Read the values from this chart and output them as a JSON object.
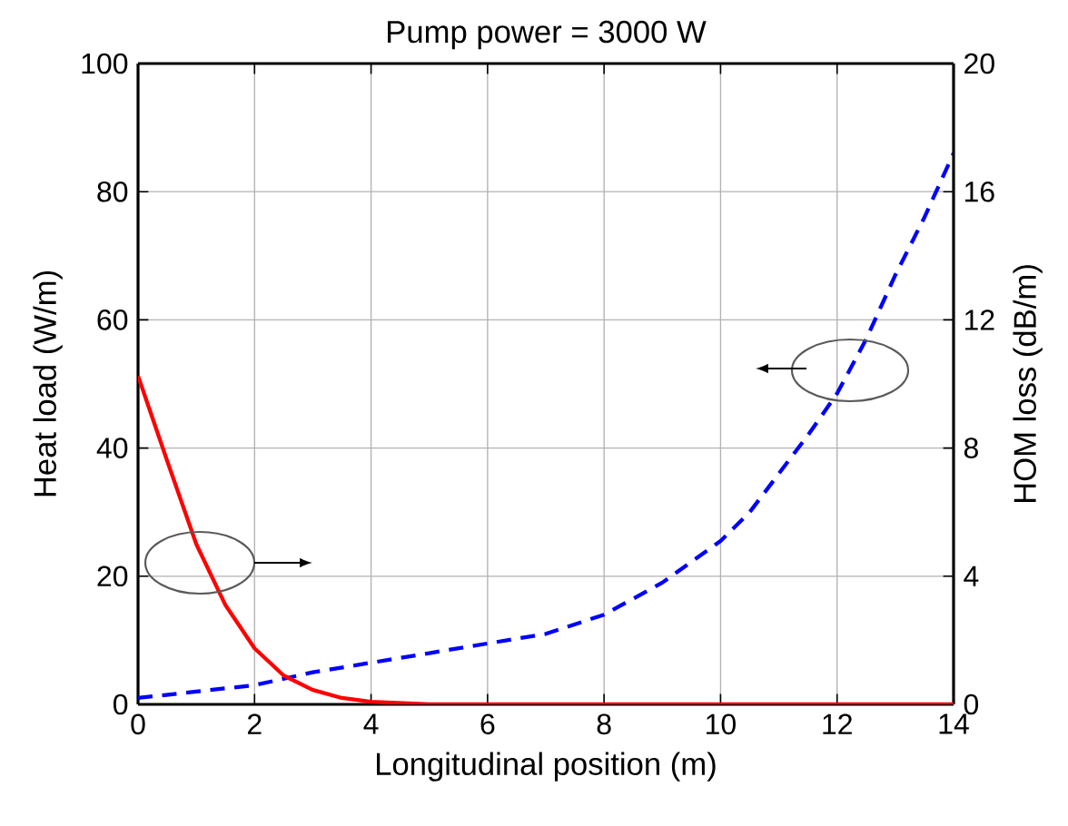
{
  "chart_data": {
    "type": "line",
    "title": "Pump power = 3000 W",
    "xlabel": "Longitudinal position (m)",
    "ylabel": "Heat load (W/m)",
    "y2label": "HOM loss (dB/m)",
    "xlim": [
      0,
      14
    ],
    "xticks": [
      0,
      2,
      4,
      6,
      8,
      10,
      12,
      14
    ],
    "ylim": [
      0,
      100
    ],
    "yticks": [
      0,
      20,
      40,
      60,
      80,
      100
    ],
    "y2lim": [
      0,
      20
    ],
    "y2ticks": [
      0,
      4,
      8,
      12,
      16,
      20
    ],
    "grid": true,
    "marker": "none",
    "series": [
      {
        "color": "#0000ff",
        "line_style": "dashed",
        "axis": "y",
        "x": [
          0,
          1,
          2,
          3,
          4,
          5,
          6,
          7,
          8,
          9,
          10,
          10.5,
          11,
          11.5,
          12,
          12.5,
          13,
          13.5,
          14
        ],
        "values": [
          1,
          2,
          3,
          5,
          6.5,
          8,
          9.5,
          11,
          14,
          19,
          25.5,
          30,
          36,
          42,
          48.5,
          57,
          67,
          76,
          86
        ]
      },
      {
        "color": "#ff0000",
        "line_style": "solid",
        "axis": "y2",
        "x": [
          0,
          0.5,
          1,
          1.5,
          2,
          2.5,
          3,
          3.5,
          4,
          5,
          14
        ],
        "values": [
          10.25,
          7.6,
          5,
          3.1,
          1.75,
          0.9,
          0.45,
          0.2,
          0.08,
          0,
          0
        ]
      }
    ]
  }
}
